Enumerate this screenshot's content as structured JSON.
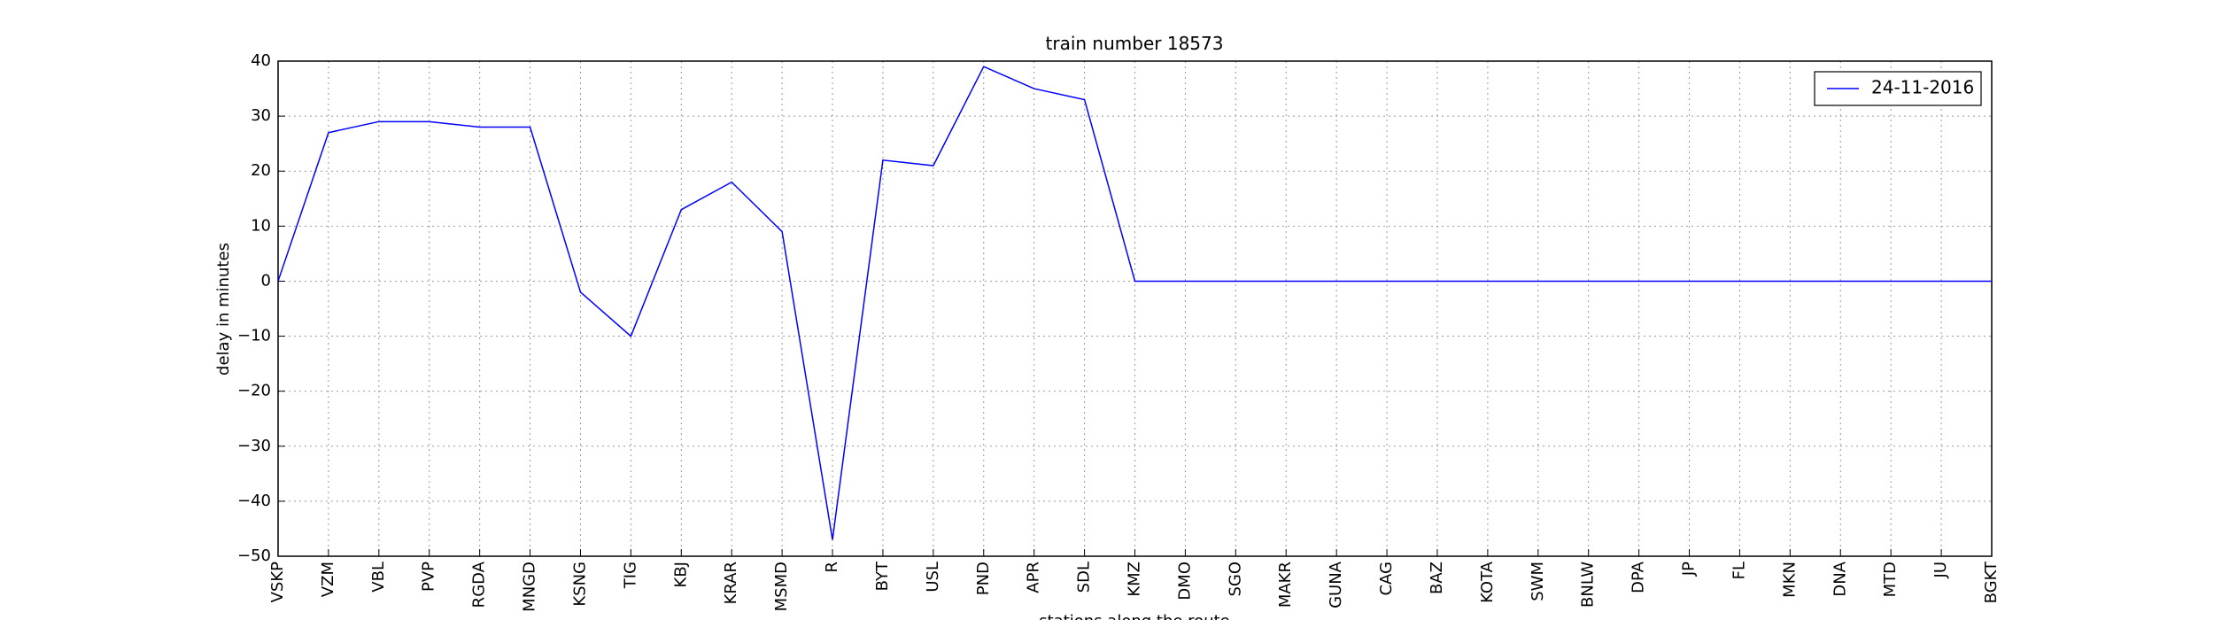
{
  "chart_data": {
    "type": "line",
    "title": "train number 18573",
    "x_label": "stations along the route",
    "y_label": "delay in minutes",
    "categories": [
      "VSKP",
      "VZM",
      "VBL",
      "PVP",
      "RGDA",
      "MNGD",
      "KSNG",
      "TIG",
      "KBJ",
      "KRAR",
      "MSMD",
      "R",
      "BYT",
      "USL",
      "PND",
      "APR",
      "SDL",
      "KMZ",
      "DMO",
      "SGO",
      "MAKR",
      "GUNA",
      "CAG",
      "BAZ",
      "KOTA",
      "SWM",
      "BNLW",
      "DPA",
      "JP",
      "FL",
      "MKN",
      "DNA",
      "MTD",
      "JU",
      "BGKT"
    ],
    "series": [
      {
        "name": "24-11-2016",
        "color": "#0000ff",
        "values": [
          0,
          27,
          29,
          29,
          28,
          28,
          -2,
          -10,
          13,
          18,
          9,
          -47,
          22,
          21,
          39,
          35,
          33,
          0,
          0,
          0,
          0,
          0,
          0,
          0,
          0,
          0,
          0,
          0,
          0,
          0,
          0,
          0,
          0,
          0,
          0
        ]
      }
    ],
    "ylim": [
      -50,
      40
    ],
    "yticks": [
      {
        "value": -50,
        "label": "−50"
      },
      {
        "value": -40,
        "label": "−40"
      },
      {
        "value": -30,
        "label": "−30"
      },
      {
        "value": -20,
        "label": "−20"
      },
      {
        "value": -10,
        "label": "−10"
      },
      0,
      10,
      20,
      30,
      40
    ],
    "grid": true,
    "legend": "upper right"
  }
}
